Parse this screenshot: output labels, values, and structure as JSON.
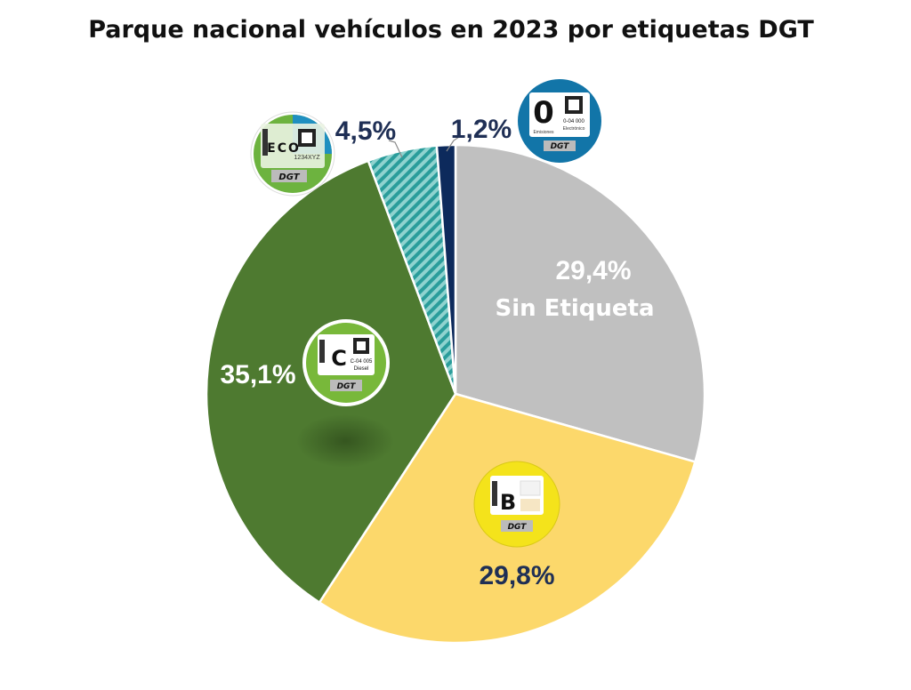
{
  "chart_data": {
    "type": "pie",
    "title": "Parque nacional vehículos en 2023 por etiquetas DGT",
    "slices": [
      {
        "key": "sin",
        "value": 29.4,
        "label": "29,4%",
        "category": "Sin Etiqueta",
        "color": "#c0c0c0"
      },
      {
        "key": "b",
        "value": 29.8,
        "label": "29,8%",
        "category": "",
        "color": "#fcd86b"
      },
      {
        "key": "c",
        "value": 35.1,
        "label": "35,1%",
        "category": "",
        "color": "#4e7a30"
      },
      {
        "key": "eco",
        "value": 4.5,
        "label": "4,5%",
        "category": "",
        "color": "#2a9d9b"
      },
      {
        "key": "zero",
        "value": 1.2,
        "label": "1,2%",
        "category": "",
        "color": "#0d2a5c"
      }
    ]
  },
  "badges": {
    "eco": {
      "main": "ECO",
      "code": "1234XYZ",
      "brand": "DGT"
    },
    "c": {
      "main": "C",
      "line1": "C-04 005",
      "line2": "Diesel",
      "brand": "DGT"
    },
    "b": {
      "main": "B",
      "brand": "DGT"
    },
    "zero": {
      "main": "0",
      "line1": "Emisiones",
      "line2": "0-04 000",
      "line3": "Electrónico",
      "brand": "DGT"
    }
  },
  "colors": {
    "label_dark": "#1f2f55",
    "label_light": "#ffffff",
    "eco_badge_green": "#6db33f",
    "eco_badge_blue": "#1f8fc0",
    "c_badge_green": "#78b83a",
    "b_badge_yellow": "#f4e31b",
    "zero_badge_blue": "#1275a8"
  }
}
